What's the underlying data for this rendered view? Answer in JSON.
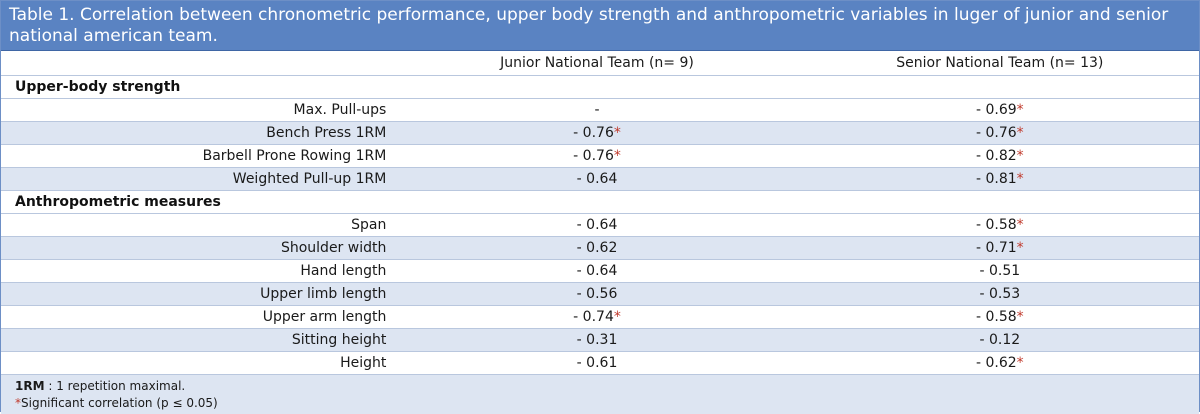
{
  "table": {
    "title": "Table 1. Correlation between chronometric performance, upper body strength and anthropometric variables in luger of junior and senior national american team.",
    "columns": [
      "",
      "Junior National Team (n= 9)",
      "Senior National Team (n= 13)"
    ],
    "sections": [
      {
        "label": "Upper-body strength",
        "rows": [
          {
            "variable": "Max. Pull-ups",
            "junior": "-",
            "junior_sig": "",
            "senior": "- 0.69",
            "senior_sig": "*"
          },
          {
            "variable": "Bench Press 1RM",
            "junior": "- 0.76",
            "junior_sig": "*",
            "senior": "- 0.76",
            "senior_sig": "*"
          },
          {
            "variable": "Barbell Prone Rowing 1RM",
            "junior": "- 0.76",
            "junior_sig": "*",
            "senior": "- 0.82",
            "senior_sig": "*"
          },
          {
            "variable": "Weighted Pull-up 1RM",
            "junior": "- 0.64",
            "junior_sig": "",
            "senior": "- 0.81",
            "senior_sig": "*"
          }
        ]
      },
      {
        "label": "Anthropometric measures",
        "rows": [
          {
            "variable": "Span",
            "junior": "- 0.64",
            "junior_sig": "",
            "senior": "- 0.58",
            "senior_sig": "*"
          },
          {
            "variable": "Shoulder width",
            "junior": "- 0.62",
            "junior_sig": "",
            "senior": "- 0.71",
            "senior_sig": "*"
          },
          {
            "variable": "Hand length",
            "junior": "- 0.64",
            "junior_sig": "",
            "senior": "- 0.51",
            "senior_sig": ""
          },
          {
            "variable": "Upper limb length",
            "junior": "- 0.56",
            "junior_sig": "",
            "senior": "- 0.53",
            "senior_sig": ""
          },
          {
            "variable": "Upper arm length",
            "junior": "- 0.74",
            "junior_sig": "*",
            "senior": "- 0.58",
            "senior_sig": "*"
          },
          {
            "variable": "Sitting height",
            "junior": "- 0.31",
            "junior_sig": "",
            "senior": "- 0.12",
            "senior_sig": ""
          },
          {
            "variable": "Height",
            "junior": "- 0.61",
            "junior_sig": "",
            "senior": "- 0.62",
            "senior_sig": "*"
          }
        ]
      }
    ],
    "footnotes": {
      "abbr_term": "1RM",
      "abbr_text": " : 1 repetition maximal.",
      "sig_mark": "*",
      "sig_text": "Significant correlation (p ≤ 0.05)"
    }
  },
  "colors": {
    "header_bg": "#5a83c2",
    "stripe_bg": "#dde5f2",
    "significance": "#c0392b"
  }
}
